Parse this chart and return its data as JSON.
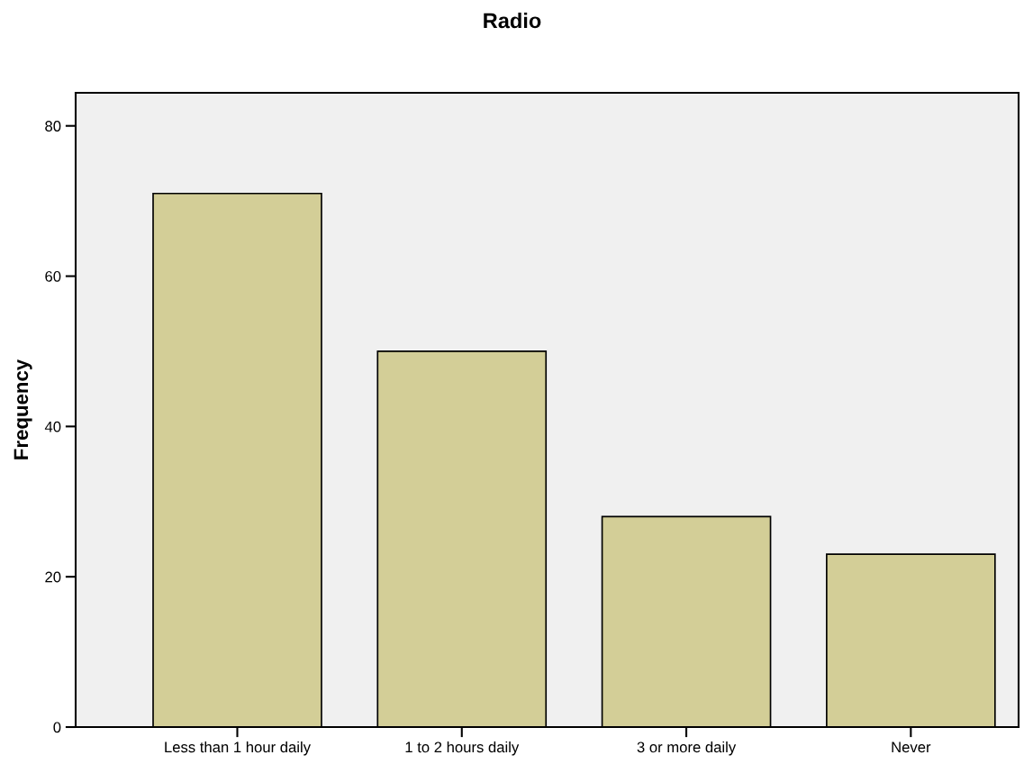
{
  "chart_data": {
    "type": "bar",
    "title": "Radio",
    "ylabel": "Frequency",
    "categories": [
      "Less than 1 hour daily",
      "1 to 2 hours daily",
      "3 or more daily",
      "Never"
    ],
    "values": [
      71,
      50,
      28,
      23
    ],
    "color": "#d3ce97",
    "ylim": [
      0,
      84.4
    ],
    "yticks": [
      0,
      20,
      40,
      60,
      80
    ],
    "grid": false,
    "legend": false
  }
}
